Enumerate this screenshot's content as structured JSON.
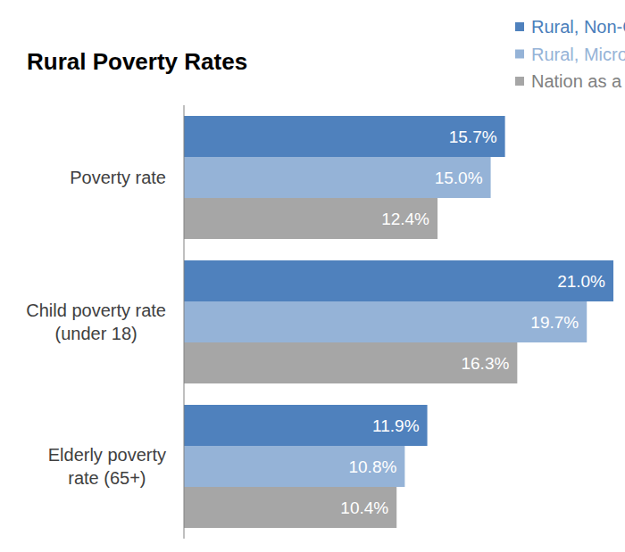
{
  "chart_data": {
    "type": "bar",
    "orientation": "horizontal",
    "title": "Rural Poverty Rates",
    "categories": [
      "Poverty rate",
      "Child poverty rate\n(under 18)",
      "Elderly poverty\nrate (65+)"
    ],
    "series": [
      {
        "name": "Rural, Non-Core",
        "color": "#4f81bd",
        "values": [
          15.7,
          21.0,
          11.9
        ],
        "value_labels": [
          "15.7%",
          "21.0%",
          "11.9%"
        ]
      },
      {
        "name": "Rural, Micropolitan",
        "color": "#95b3d7",
        "values": [
          15.0,
          19.7,
          10.8
        ],
        "value_labels": [
          "15.0%",
          "19.7%",
          "10.8%"
        ]
      },
      {
        "name": "Nation as a Whole",
        "color": "#a6a6a6",
        "values": [
          12.4,
          16.3,
          10.4
        ],
        "value_labels": [
          "12.4%",
          "16.3%",
          "10.4%"
        ]
      }
    ],
    "xlim": [
      0,
      21
    ],
    "data_labels": true,
    "tick_labels": "y",
    "grid": false,
    "legend": "top-right"
  }
}
